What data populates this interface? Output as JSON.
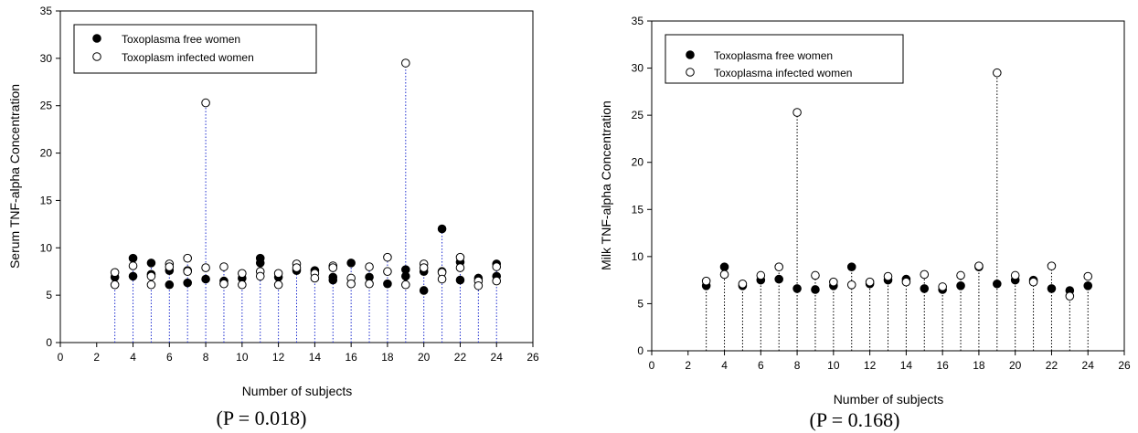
{
  "charts": [
    {
      "title": "",
      "ylabel": "Serum TNF-alpha Concentration",
      "xlabel": "Number of subjects",
      "caption": "(P = 0.018)",
      "legend": [
        "Toxoplasma free women",
        "Toxoplasm infected  women"
      ]
    },
    {
      "title": "",
      "ylabel": "Milk TNF-alpha Concentration",
      "xlabel": "Number of subjects",
      "caption": "(P = 0.168)",
      "legend": [
        "Toxoplasma free women",
        "Toxoplasma infected women"
      ]
    }
  ],
  "chart_data": [
    {
      "type": "scatter",
      "x_ticks": [
        0,
        2,
        4,
        6,
        8,
        10,
        12,
        14,
        16,
        18,
        20,
        22,
        24,
        26
      ],
      "y_ticks": [
        0,
        5,
        10,
        15,
        20,
        25,
        30,
        35
      ],
      "xlim": [
        0,
        26
      ],
      "ylim": [
        0,
        35
      ],
      "drop_lines": {
        "color": "#1f2fd0",
        "style": "dotted"
      },
      "legend_position": "top-left",
      "series": [
        {
          "name": "Toxoplasma free women",
          "marker": "filled-circle",
          "points": [
            [
              3,
              6.9
            ],
            [
              4,
              8.9
            ],
            [
              4,
              7.0
            ],
            [
              5,
              8.4
            ],
            [
              5,
              7.2
            ],
            [
              6,
              6.1
            ],
            [
              6,
              7.6
            ],
            [
              7,
              7.6
            ],
            [
              7,
              6.3
            ],
            [
              8,
              6.7
            ],
            [
              9,
              6.5
            ],
            [
              10,
              6.8
            ],
            [
              11,
              8.9
            ],
            [
              11,
              8.4
            ],
            [
              12,
              6.9
            ],
            [
              13,
              7.6
            ],
            [
              14,
              7.6
            ],
            [
              15,
              6.9
            ],
            [
              15,
              6.6
            ],
            [
              16,
              8.4
            ],
            [
              17,
              6.9
            ],
            [
              18,
              6.2
            ],
            [
              19,
              7.7
            ],
            [
              19,
              7.0
            ],
            [
              20,
              5.5
            ],
            [
              20,
              7.5
            ],
            [
              21,
              12.0
            ],
            [
              21,
              7.5
            ],
            [
              22,
              8.5
            ],
            [
              22,
              6.6
            ],
            [
              23,
              6.8
            ],
            [
              24,
              8.3
            ],
            [
              24,
              7.0
            ]
          ]
        },
        {
          "name": "Toxoplasm infected  women",
          "marker": "open-circle",
          "points": [
            [
              3,
              7.4
            ],
            [
              3,
              6.1
            ],
            [
              4,
              8.1
            ],
            [
              5,
              7.0
            ],
            [
              5,
              6.1
            ],
            [
              6,
              8.3
            ],
            [
              6,
              8.0
            ],
            [
              7,
              8.9
            ],
            [
              7,
              7.5
            ],
            [
              8,
              25.3
            ],
            [
              8,
              7.9
            ],
            [
              9,
              8.0
            ],
            [
              9,
              6.2
            ],
            [
              10,
              7.3
            ],
            [
              10,
              6.1
            ],
            [
              11,
              7.5
            ],
            [
              11,
              7.0
            ],
            [
              12,
              7.3
            ],
            [
              12,
              6.1
            ],
            [
              13,
              8.3
            ],
            [
              13,
              7.9
            ],
            [
              14,
              7.3
            ],
            [
              14,
              6.8
            ],
            [
              15,
              8.1
            ],
            [
              15,
              7.9
            ],
            [
              16,
              6.8
            ],
            [
              16,
              6.2
            ],
            [
              17,
              8.0
            ],
            [
              17,
              6.2
            ],
            [
              18,
              9.0
            ],
            [
              18,
              7.5
            ],
            [
              19,
              29.5
            ],
            [
              19,
              6.1
            ],
            [
              20,
              8.3
            ],
            [
              20,
              7.9
            ],
            [
              21,
              7.4
            ],
            [
              21,
              6.7
            ],
            [
              22,
              9.0
            ],
            [
              22,
              7.9
            ],
            [
              23,
              6.5
            ],
            [
              23,
              6.0
            ],
            [
              24,
              8.0
            ],
            [
              24,
              6.5
            ]
          ]
        }
      ]
    },
    {
      "type": "scatter",
      "x_ticks": [
        0,
        2,
        4,
        6,
        8,
        10,
        12,
        14,
        16,
        18,
        20,
        22,
        24,
        26
      ],
      "y_ticks": [
        0,
        5,
        10,
        15,
        20,
        25,
        30,
        35
      ],
      "xlim": [
        0,
        26
      ],
      "ylim": [
        0,
        35
      ],
      "drop_lines": {
        "color": "#000000",
        "style": "dotted"
      },
      "legend_position": "top-left",
      "series": [
        {
          "name": "Toxoplasma free women",
          "marker": "filled-circle",
          "points": [
            [
              3,
              6.9
            ],
            [
              4,
              8.9
            ],
            [
              5,
              6.9
            ],
            [
              6,
              7.5
            ],
            [
              7,
              7.6
            ],
            [
              8,
              6.6
            ],
            [
              9,
              6.5
            ],
            [
              10,
              6.9
            ],
            [
              11,
              8.9
            ],
            [
              12,
              7.1
            ],
            [
              13,
              7.5
            ],
            [
              14,
              7.6
            ],
            [
              15,
              6.6
            ],
            [
              16,
              6.5
            ],
            [
              17,
              6.9
            ],
            [
              18,
              8.9
            ],
            [
              19,
              7.1
            ],
            [
              20,
              7.5
            ],
            [
              21,
              7.5
            ],
            [
              22,
              6.6
            ],
            [
              23,
              6.4
            ],
            [
              24,
              6.9
            ]
          ]
        },
        {
          "name": "Toxoplasma infected women",
          "marker": "open-circle",
          "points": [
            [
              3,
              7.4
            ],
            [
              4,
              8.1
            ],
            [
              5,
              7.1
            ],
            [
              6,
              8.0
            ],
            [
              7,
              8.9
            ],
            [
              8,
              25.3
            ],
            [
              9,
              8.0
            ],
            [
              10,
              7.3
            ],
            [
              11,
              7.0
            ],
            [
              12,
              7.3
            ],
            [
              13,
              7.9
            ],
            [
              14,
              7.3
            ],
            [
              15,
              8.1
            ],
            [
              16,
              6.8
            ],
            [
              17,
              8.0
            ],
            [
              18,
              9.0
            ],
            [
              19,
              29.5
            ],
            [
              20,
              8.0
            ],
            [
              21,
              7.3
            ],
            [
              22,
              9.0
            ],
            [
              23,
              5.8
            ],
            [
              24,
              7.9
            ]
          ]
        }
      ]
    }
  ]
}
